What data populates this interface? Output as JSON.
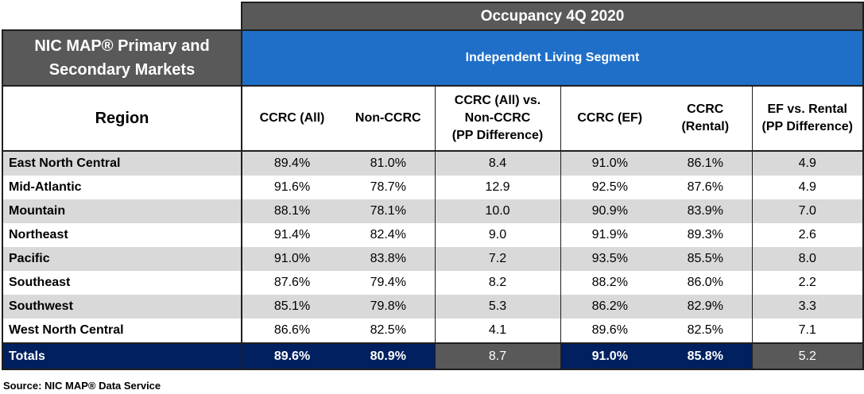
{
  "title": "Occupancy 4Q 2020",
  "markets_label": "NIC MAP® Primary and Secondary Markets",
  "segment_label": "Independent Living Segment",
  "columns": {
    "region": "Region",
    "ccrc_all": "CCRC (All)",
    "non_ccrc": "Non-CCRC",
    "diff1_line1": "CCRC (All) vs.",
    "diff1_line2": "Non-CCRC",
    "diff1_line3": "(PP Difference)",
    "ccrc_ef": "CCRC (EF)",
    "ccrc_rental_line1": "CCRC",
    "ccrc_rental_line2": "(Rental)",
    "diff2_line1": "EF vs. Rental",
    "diff2_line2": "(PP Difference)"
  },
  "rows": [
    {
      "region": "East North Central",
      "ccrc_all": "89.4%",
      "non_ccrc": "81.0%",
      "diff1": "8.4",
      "ccrc_ef": "91.0%",
      "ccrc_rental": "86.1%",
      "diff2": "4.9"
    },
    {
      "region": "Mid-Atlantic",
      "ccrc_all": "91.6%",
      "non_ccrc": "78.7%",
      "diff1": "12.9",
      "ccrc_ef": "92.5%",
      "ccrc_rental": "87.6%",
      "diff2": "4.9"
    },
    {
      "region": "Mountain",
      "ccrc_all": "88.1%",
      "non_ccrc": "78.1%",
      "diff1": "10.0",
      "ccrc_ef": "90.9%",
      "ccrc_rental": "83.9%",
      "diff2": "7.0"
    },
    {
      "region": "Northeast",
      "ccrc_all": "91.4%",
      "non_ccrc": "82.4%",
      "diff1": "9.0",
      "ccrc_ef": "91.9%",
      "ccrc_rental": "89.3%",
      "diff2": "2.6"
    },
    {
      "region": "Pacific",
      "ccrc_all": "91.0%",
      "non_ccrc": "83.8%",
      "diff1": "7.2",
      "ccrc_ef": "93.5%",
      "ccrc_rental": "85.5%",
      "diff2": "8.0"
    },
    {
      "region": "Southeast",
      "ccrc_all": "87.6%",
      "non_ccrc": "79.4%",
      "diff1": "8.2",
      "ccrc_ef": "88.2%",
      "ccrc_rental": "86.0%",
      "diff2": "2.2"
    },
    {
      "region": "Southwest",
      "ccrc_all": "85.1%",
      "non_ccrc": "79.8%",
      "diff1": "5.3",
      "ccrc_ef": "86.2%",
      "ccrc_rental": "82.9%",
      "diff2": "3.3"
    },
    {
      "region": "West North Central",
      "ccrc_all": "86.6%",
      "non_ccrc": "82.5%",
      "diff1": "4.1",
      "ccrc_ef": "89.6%",
      "ccrc_rental": "82.5%",
      "diff2": "7.1"
    }
  ],
  "totals": {
    "region": "Totals",
    "ccrc_all": "89.6%",
    "non_ccrc": "80.9%",
    "diff1": "8.7",
    "ccrc_ef": "91.0%",
    "ccrc_rental": "85.8%",
    "diff2": "5.2"
  },
  "source": "Source: NIC MAP® Data Service",
  "colors": {
    "header_gray": "#595959",
    "segment_blue": "#1f6fc9",
    "totals_navy": "#002060",
    "row_gray": "#d9d9d9"
  }
}
